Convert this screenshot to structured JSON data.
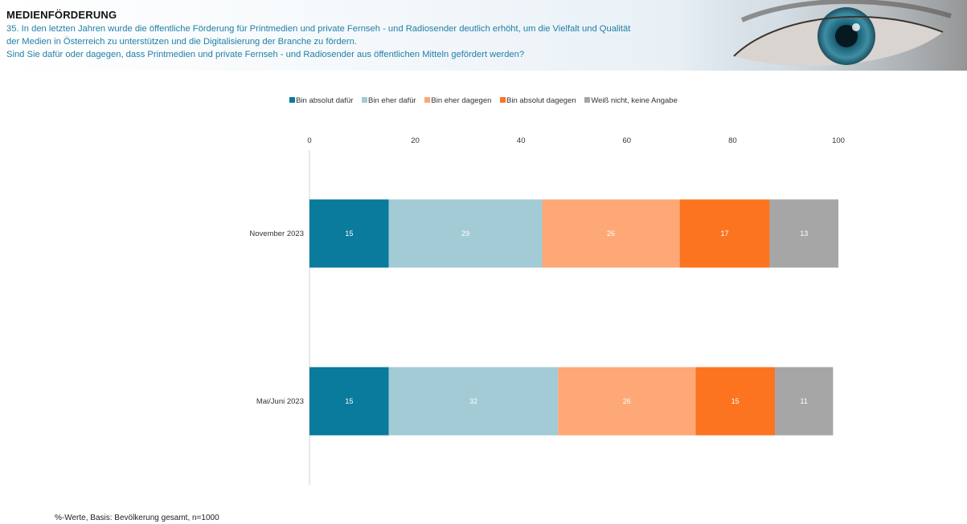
{
  "header": {
    "title": "MEDIENFÖRDERUNG",
    "question_line1": "35. In den letzten Jahren wurde die öffentliche Förderung für Printmedien und private Fernseh     - und Radiosender deutlich erhöht, um die   Vielfalt und Qualität",
    "question_line2": "der Medien in Österreich zu unterstützen und die Digitalisierung der Branche zu fördern.",
    "question_line3": "Sind Sie dafür oder dagegen, dass Printmedien und private Fernseh    - und Radiosender aus öffentlichen Mitteln gefördert werden?",
    "image_icon": "eye-photo"
  },
  "chart_data": {
    "type": "bar",
    "orientation": "horizontal",
    "stacked": true,
    "categories": [
      "November 2023",
      "Mai/Juni 2023"
    ],
    "series": [
      {
        "name": "Bin absolut dafür",
        "color": "#0a7b9c",
        "values": [
          15,
          15
        ]
      },
      {
        "name": "Bin eher dafür",
        "color": "#a3cbd5",
        "values": [
          29,
          32
        ]
      },
      {
        "name": "Bin eher dagegen",
        "color": "#fda876",
        "values": [
          26,
          26
        ]
      },
      {
        "name": "Bin absolut dagegen",
        "color": "#fc7420",
        "values": [
          17,
          15
        ]
      },
      {
        "name": "Weiß nicht, keine Angabe",
        "color": "#a6a6a6",
        "values": [
          13,
          11
        ]
      }
    ],
    "xlim": [
      0,
      100
    ],
    "xticks": [
      0,
      20,
      40,
      60,
      80,
      100
    ],
    "legend_position": "top",
    "grid": false
  },
  "footnote": "%-Werte, Basis: Bevölkerung gesamt, n=1000"
}
